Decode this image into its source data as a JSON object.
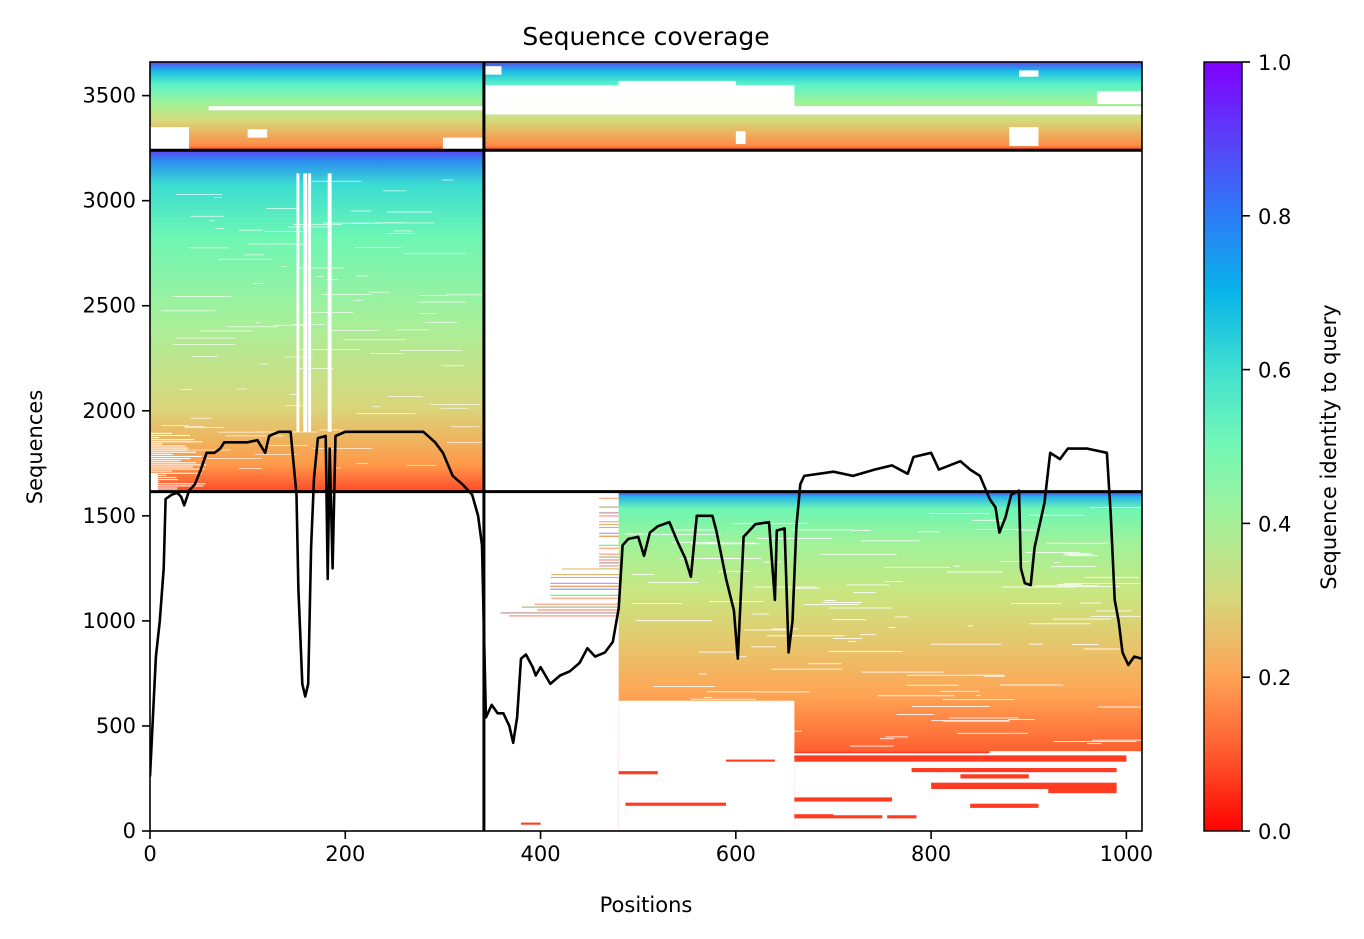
{
  "chart_data": {
    "type": "heatmap",
    "title": "Sequence coverage",
    "xlabel": "Positions",
    "ylabel": "Sequences",
    "xlim": [
      0,
      1016
    ],
    "ylim": [
      0,
      3660
    ],
    "xticks": [
      0,
      200,
      400,
      600,
      800,
      1000
    ],
    "yticks": [
      0,
      500,
      1000,
      1500,
      2000,
      2500,
      3000,
      3500
    ],
    "colorbar": {
      "label": "Sequence identity to query",
      "range": [
        0.0,
        1.0
      ],
      "ticks": [
        0.0,
        0.2,
        0.4,
        0.6,
        0.8,
        1.0
      ],
      "tick_labels": [
        "0.0",
        "0.2",
        "0.4",
        "0.6",
        "0.8",
        "1.0"
      ],
      "colormap": "rainbow_r"
    },
    "chain_boundaries": {
      "x": [
        342
      ],
      "y": [
        1615,
        3240
      ]
    },
    "blocks": [
      {
        "name": "chain A paired",
        "x": [
          0,
          342
        ],
        "y": [
          3240,
          3660
        ],
        "identity_bottom": 0.12,
        "identity_top": 1.0
      },
      {
        "name": "chain B paired",
        "x": [
          342,
          1016
        ],
        "y": [
          3240,
          3660
        ],
        "identity_bottom": 0.12,
        "identity_top": 1.0
      },
      {
        "name": "chain A unpaired",
        "x": [
          0,
          342
        ],
        "y": [
          1615,
          3240
        ],
        "identity_bottom": 0.12,
        "identity_top": 1.0
      },
      {
        "name": "chain B unpaired",
        "x": [
          342,
          1016
        ],
        "y": [
          0,
          1615
        ],
        "identity_bottom": 0.0,
        "identity_top": 1.0
      }
    ],
    "coverage_line": {
      "color": "#000000",
      "points": [
        [
          0,
          260
        ],
        [
          3,
          540
        ],
        [
          6,
          830
        ],
        [
          10,
          1000
        ],
        [
          14,
          1250
        ],
        [
          16,
          1580
        ],
        [
          22,
          1600
        ],
        [
          28,
          1610
        ],
        [
          32,
          1590
        ],
        [
          35,
          1550
        ],
        [
          40,
          1620
        ],
        [
          46,
          1650
        ],
        [
          52,
          1720
        ],
        [
          58,
          1800
        ],
        [
          66,
          1800
        ],
        [
          72,
          1820
        ],
        [
          76,
          1850
        ],
        [
          100,
          1850
        ],
        [
          110,
          1860
        ],
        [
          118,
          1800
        ],
        [
          122,
          1880
        ],
        [
          132,
          1900
        ],
        [
          144,
          1900
        ],
        [
          150,
          1600
        ],
        [
          152,
          1150
        ],
        [
          156,
          700
        ],
        [
          159,
          640
        ],
        [
          162,
          700
        ],
        [
          165,
          1350
        ],
        [
          168,
          1680
        ],
        [
          172,
          1870
        ],
        [
          180,
          1880
        ],
        [
          182,
          1200
        ],
        [
          184,
          1820
        ],
        [
          187,
          1250
        ],
        [
          190,
          1880
        ],
        [
          200,
          1900
        ],
        [
          230,
          1900
        ],
        [
          280,
          1900
        ],
        [
          292,
          1850
        ],
        [
          300,
          1800
        ],
        [
          310,
          1690
        ],
        [
          320,
          1650
        ],
        [
          330,
          1600
        ],
        [
          336,
          1500
        ],
        [
          340,
          1360
        ],
        [
          344,
          540
        ],
        [
          350,
          600
        ],
        [
          356,
          560
        ],
        [
          362,
          560
        ],
        [
          368,
          500
        ],
        [
          372,
          420
        ],
        [
          376,
          540
        ],
        [
          380,
          820
        ],
        [
          385,
          840
        ],
        [
          392,
          780
        ],
        [
          395,
          740
        ],
        [
          400,
          780
        ],
        [
          410,
          700
        ],
        [
          420,
          740
        ],
        [
          430,
          760
        ],
        [
          440,
          800
        ],
        [
          448,
          870
        ],
        [
          456,
          830
        ],
        [
          466,
          850
        ],
        [
          474,
          900
        ],
        [
          480,
          1060
        ],
        [
          484,
          1360
        ],
        [
          490,
          1390
        ],
        [
          500,
          1400
        ],
        [
          506,
          1310
        ],
        [
          512,
          1420
        ],
        [
          520,
          1450
        ],
        [
          532,
          1470
        ],
        [
          540,
          1380
        ],
        [
          548,
          1300
        ],
        [
          554,
          1210
        ],
        [
          560,
          1500
        ],
        [
          576,
          1500
        ],
        [
          580,
          1430
        ],
        [
          590,
          1200
        ],
        [
          598,
          1050
        ],
        [
          602,
          820
        ],
        [
          608,
          1400
        ],
        [
          620,
          1460
        ],
        [
          634,
          1470
        ],
        [
          640,
          1100
        ],
        [
          642,
          1430
        ],
        [
          650,
          1440
        ],
        [
          654,
          850
        ],
        [
          658,
          1000
        ],
        [
          662,
          1450
        ],
        [
          666,
          1650
        ],
        [
          670,
          1690
        ],
        [
          700,
          1710
        ],
        [
          720,
          1690
        ],
        [
          742,
          1720
        ],
        [
          760,
          1740
        ],
        [
          776,
          1700
        ],
        [
          782,
          1780
        ],
        [
          800,
          1800
        ],
        [
          808,
          1720
        ],
        [
          830,
          1760
        ],
        [
          840,
          1720
        ],
        [
          850,
          1690
        ],
        [
          860,
          1580
        ],
        [
          866,
          1540
        ],
        [
          870,
          1420
        ],
        [
          876,
          1490
        ],
        [
          882,
          1600
        ],
        [
          890,
          1620
        ],
        [
          892,
          1250
        ],
        [
          896,
          1180
        ],
        [
          902,
          1170
        ],
        [
          906,
          1350
        ],
        [
          916,
          1560
        ],
        [
          922,
          1800
        ],
        [
          932,
          1770
        ],
        [
          940,
          1820
        ],
        [
          960,
          1820
        ],
        [
          980,
          1800
        ],
        [
          984,
          1500
        ],
        [
          988,
          1100
        ],
        [
          992,
          1000
        ],
        [
          996,
          850
        ],
        [
          1002,
          790
        ],
        [
          1008,
          830
        ],
        [
          1016,
          820
        ]
      ]
    }
  }
}
